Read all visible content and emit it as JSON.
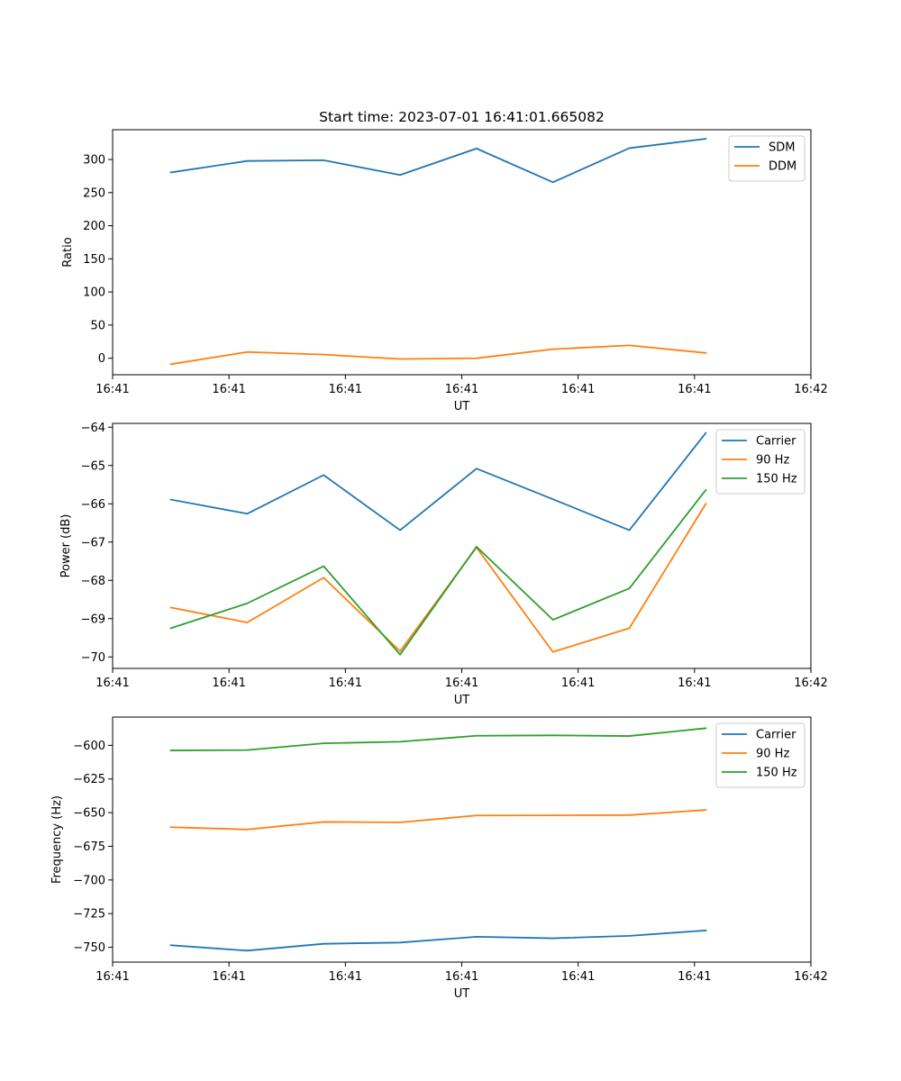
{
  "figure_title": "Start time: 2023-07-01 16:41:01.665082",
  "colors": {
    "blue": "#1f77b4",
    "orange": "#ff7f0e",
    "green": "#2ca02c"
  },
  "chart_data": [
    {
      "type": "line",
      "title": "Start time: 2023-07-01 16:41:01.665082",
      "xlabel": "UT",
      "ylabel": "Ratio",
      "xlim": [
        0,
        18
      ],
      "ylim": [
        -25,
        345
      ],
      "x_ticks": [
        0,
        3,
        6,
        9,
        12,
        15,
        18
      ],
      "x_tick_labels": [
        "16:41",
        "16:41",
        "16:41",
        "16:41",
        "16:41",
        "16:41",
        "16:42"
      ],
      "y_ticks": [
        0,
        50,
        100,
        150,
        200,
        250,
        300
      ],
      "y_tick_labels": [
        "0",
        "50",
        "100",
        "150",
        "200",
        "250",
        "300"
      ],
      "x": [
        1.5,
        3.47,
        5.44,
        7.41,
        9.38,
        11.35,
        13.32,
        15.29
      ],
      "series": [
        {
          "name": "SDM",
          "color": "#1f77b4",
          "values": [
            280.5,
            297.8,
            298.9,
            276.6,
            316.6,
            265.7,
            317.2,
            331.3
          ]
        },
        {
          "name": "DDM",
          "color": "#ff7f0e",
          "values": [
            -9.1,
            9.3,
            5.4,
            -1.2,
            -0.1,
            13.6,
            19.4,
            7.9
          ]
        }
      ],
      "legend_loc": "upper right"
    },
    {
      "type": "line",
      "title": "",
      "xlabel": "UT",
      "ylabel": "Power (dB)",
      "xlim": [
        0,
        18
      ],
      "ylim": [
        -70.3,
        -63.9
      ],
      "x_ticks": [
        0,
        3,
        6,
        9,
        12,
        15,
        18
      ],
      "x_tick_labels": [
        "16:41",
        "16:41",
        "16:41",
        "16:41",
        "16:41",
        "16:41",
        "16:42"
      ],
      "y_ticks": [
        -70,
        -69,
        -68,
        -67,
        -66,
        -65,
        -64
      ],
      "y_tick_labels": [
        "−70",
        "−69",
        "−68",
        "−67",
        "−66",
        "−65",
        "−64"
      ],
      "x": [
        1.5,
        3.47,
        5.44,
        7.41,
        9.38,
        11.35,
        13.32,
        15.29
      ],
      "series": [
        {
          "name": "Carrier",
          "color": "#1f77b4",
          "values": [
            -65.89,
            -66.26,
            -65.25,
            -66.69,
            -65.08,
            -65.88,
            -66.69,
            -64.15
          ]
        },
        {
          "name": "90 Hz",
          "color": "#ff7f0e",
          "values": [
            -68.71,
            -69.1,
            -67.93,
            -69.85,
            -67.14,
            -69.87,
            -69.25,
            -66.0
          ]
        },
        {
          "name": "150 Hz",
          "color": "#2ca02c",
          "values": [
            -69.25,
            -68.6,
            -67.63,
            -69.94,
            -67.12,
            -69.03,
            -68.21,
            -65.64
          ]
        }
      ],
      "legend_loc": "upper right"
    },
    {
      "type": "line",
      "title": "",
      "xlabel": "UT",
      "ylabel": "Frequency (Hz)",
      "xlim": [
        0,
        18
      ],
      "ylim": [
        -761,
        -579
      ],
      "x_ticks": [
        0,
        3,
        6,
        9,
        12,
        15,
        18
      ],
      "x_tick_labels": [
        "16:41",
        "16:41",
        "16:41",
        "16:41",
        "16:41",
        "16:41",
        "16:42"
      ],
      "y_ticks": [
        -750,
        -725,
        -700,
        -675,
        -650,
        -625,
        -600
      ],
      "y_tick_labels": [
        "−750",
        "−725",
        "−700",
        "−675",
        "−650",
        "−625",
        "−600"
      ],
      "x": [
        1.5,
        3.47,
        5.44,
        7.41,
        9.38,
        11.35,
        13.32,
        15.29
      ],
      "series": [
        {
          "name": "Carrier",
          "color": "#1f77b4",
          "values": [
            -748.5,
            -752.5,
            -747.4,
            -746.5,
            -742.2,
            -743.3,
            -741.5,
            -737.5
          ]
        },
        {
          "name": "90 Hz",
          "color": "#ff7f0e",
          "values": [
            -660.8,
            -662.5,
            -656.9,
            -657.2,
            -652.1,
            -652.0,
            -651.8,
            -648.0
          ]
        },
        {
          "name": "150 Hz",
          "color": "#2ca02c",
          "values": [
            -603.8,
            -603.5,
            -598.5,
            -597.3,
            -592.9,
            -592.6,
            -593.1,
            -587.3
          ]
        }
      ],
      "legend_loc": "upper right"
    }
  ]
}
